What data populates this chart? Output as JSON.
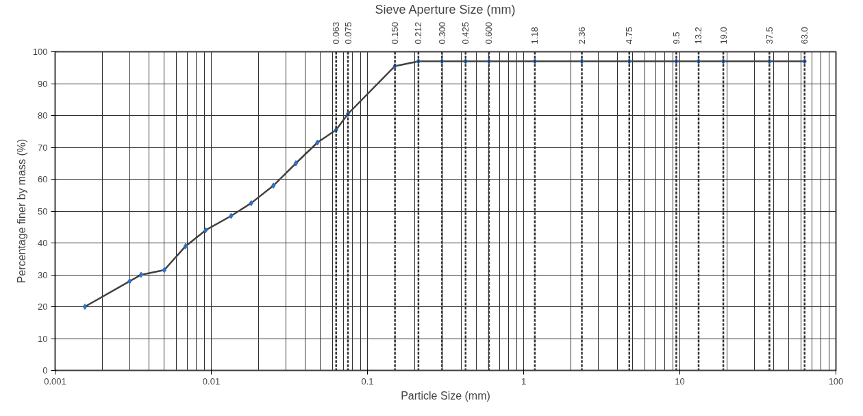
{
  "chart_data": {
    "type": "line",
    "xlabel": "Particle Size (mm)",
    "ylabel": "Percentage finer by mass (%)",
    "x2label": "Sieve Aperture Size (mm)",
    "log": "x",
    "grid": true,
    "marker": "diamond",
    "line_style": "solid",
    "xlim": [
      0.001,
      100
    ],
    "xticks": [
      {
        "value": 0.001,
        "label": "0.001"
      },
      {
        "value": 0.01,
        "label": "0.01"
      },
      {
        "value": 0.1,
        "label": "0.1"
      },
      1,
      10,
      100
    ],
    "ylim": [
      0,
      100
    ],
    "yticks": [
      0,
      10,
      20,
      30,
      40,
      50,
      60,
      70,
      80,
      90,
      100
    ],
    "series": [
      {
        "color": "#404040",
        "x": [
          0.00155,
          0.003,
          0.00355,
          0.005,
          0.00685,
          0.0092,
          0.0134,
          0.018,
          0.025,
          0.0348,
          0.0478,
          0.063,
          0.075,
          0.15,
          0.212,
          0.3,
          0.425,
          0.6,
          1.18,
          2.36,
          4.75,
          9.5,
          13.2,
          19.0,
          37.5,
          63.0
        ],
        "values": [
          20,
          28,
          30,
          31.5,
          39,
          44,
          48.5,
          52.5,
          58,
          65,
          71.5,
          75.5,
          80.5,
          95.5,
          97,
          97,
          97,
          97,
          97,
          97,
          97,
          97,
          97,
          97,
          97,
          97
        ]
      }
    ],
    "ref_lines": [
      {
        "axis": "x",
        "value": 0.063,
        "label": "0.063",
        "line_style": "dashed"
      },
      {
        "axis": "x",
        "value": 0.075,
        "label": "0.075",
        "line_style": "dashed"
      },
      {
        "axis": "x",
        "value": 0.15,
        "label": "0.150",
        "line_style": "dashed"
      },
      {
        "axis": "x",
        "value": 0.212,
        "label": "0.212",
        "line_style": "dashed"
      },
      {
        "axis": "x",
        "value": 0.3,
        "label": "0.300",
        "line_style": "dashed"
      },
      {
        "axis": "x",
        "value": 0.425,
        "label": "0.425",
        "line_style": "dashed"
      },
      {
        "axis": "x",
        "value": 0.6,
        "label": "0.600",
        "line_style": "dashed"
      },
      {
        "axis": "x",
        "value": 1.18,
        "label": "1.18",
        "line_style": "dashed"
      },
      {
        "axis": "x",
        "value": 2.36,
        "label": "2.36",
        "line_style": "dashed"
      },
      {
        "axis": "x",
        "value": 4.75,
        "label": "4.75",
        "line_style": "dashed"
      },
      {
        "axis": "x",
        "value": 9.5,
        "label": "9.5",
        "line_style": "dashed"
      },
      {
        "axis": "x",
        "value": 13.2,
        "label": "13.2",
        "line_style": "dashed"
      },
      {
        "axis": "x",
        "value": 19.0,
        "label": "19.0",
        "line_style": "dashed"
      },
      {
        "axis": "x",
        "value": 37.5,
        "label": "37.5",
        "line_style": "dashed"
      },
      {
        "axis": "x",
        "value": 63.0,
        "label": "63.0",
        "line_style": "dashed"
      }
    ]
  }
}
